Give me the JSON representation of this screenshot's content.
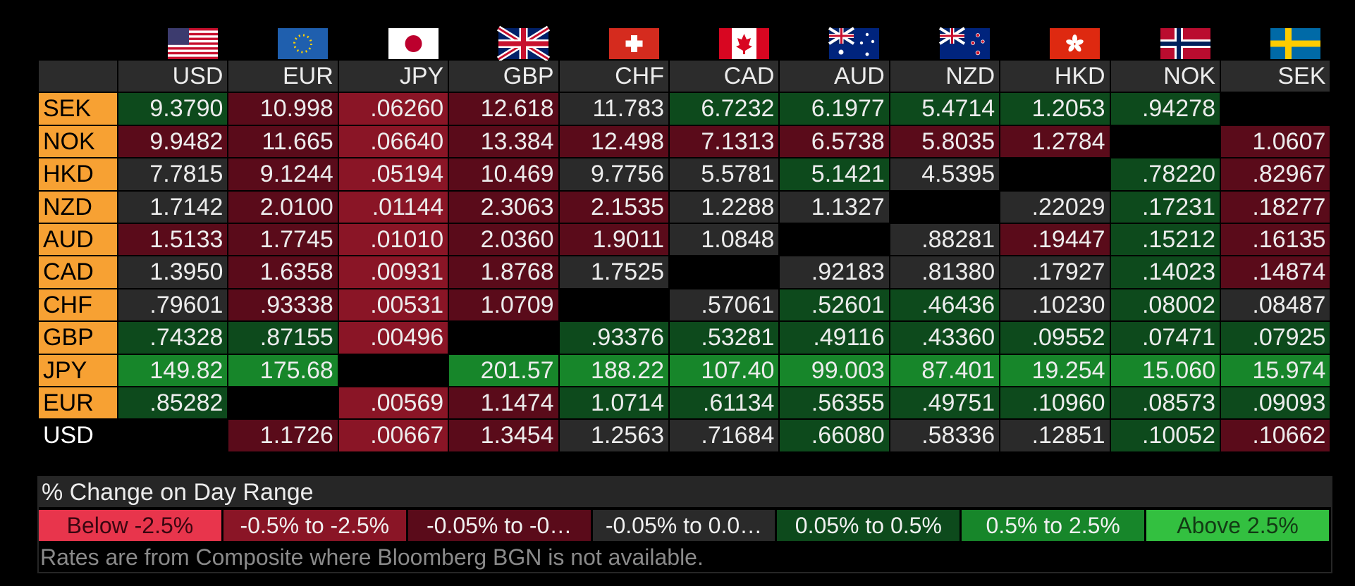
{
  "columns": [
    "USD",
    "EUR",
    "JPY",
    "GBP",
    "CHF",
    "CAD",
    "AUD",
    "NZD",
    "HKD",
    "NOK",
    "SEK"
  ],
  "rows": [
    {
      "label": "SEK",
      "highlight": true,
      "cells": [
        "9.3790",
        "10.998",
        ".06260",
        "12.618",
        "11.783",
        "6.7232",
        "6.1977",
        "5.4714",
        "1.2053",
        ".94278",
        null
      ],
      "levels": [
        4,
        2,
        1,
        2,
        3,
        4,
        4,
        4,
        4,
        4,
        null
      ]
    },
    {
      "label": "NOK",
      "highlight": true,
      "cells": [
        "9.9482",
        "11.665",
        ".06640",
        "13.384",
        "12.498",
        "7.1313",
        "6.5738",
        "5.8035",
        "1.2784",
        null,
        "1.0607"
      ],
      "levels": [
        2,
        2,
        1,
        2,
        2,
        2,
        2,
        2,
        2,
        null,
        2
      ]
    },
    {
      "label": "HKD",
      "highlight": true,
      "cells": [
        "7.7815",
        "9.1244",
        ".05194",
        "10.469",
        "9.7756",
        "5.5781",
        "5.1421",
        "4.5395",
        null,
        ".78220",
        ".82967"
      ],
      "levels": [
        3,
        2,
        1,
        2,
        3,
        3,
        4,
        3,
        null,
        4,
        2
      ]
    },
    {
      "label": "NZD",
      "highlight": true,
      "cells": [
        "1.7142",
        "2.0100",
        ".01144",
        "2.3063",
        "2.1535",
        "1.2288",
        "1.1327",
        null,
        ".22029",
        ".17231",
        ".18277"
      ],
      "levels": [
        3,
        2,
        1,
        2,
        2,
        3,
        3,
        null,
        3,
        4,
        2
      ]
    },
    {
      "label": "AUD",
      "highlight": true,
      "cells": [
        "1.5133",
        "1.7745",
        ".01010",
        "2.0360",
        "1.9011",
        "1.0848",
        null,
        ".88281",
        ".19447",
        ".15212",
        ".16135"
      ],
      "levels": [
        2,
        2,
        1,
        2,
        2,
        3,
        null,
        3,
        2,
        4,
        2
      ]
    },
    {
      "label": "CAD",
      "highlight": true,
      "cells": [
        "1.3950",
        "1.6358",
        ".00931",
        "1.8768",
        "1.7525",
        null,
        ".92183",
        ".81380",
        ".17927",
        ".14023",
        ".14874"
      ],
      "levels": [
        3,
        2,
        1,
        2,
        3,
        null,
        3,
        3,
        3,
        4,
        2
      ]
    },
    {
      "label": "CHF",
      "highlight": true,
      "cells": [
        ".79601",
        ".93338",
        ".00531",
        "1.0709",
        null,
        ".57061",
        ".52601",
        ".46436",
        ".10230",
        ".08002",
        ".08487"
      ],
      "levels": [
        3,
        2,
        1,
        2,
        null,
        3,
        4,
        4,
        3,
        4,
        3
      ]
    },
    {
      "label": "GBP",
      "highlight": true,
      "cells": [
        ".74328",
        ".87155",
        ".00496",
        null,
        ".93376",
        ".53281",
        ".49116",
        ".43360",
        ".09552",
        ".07471",
        ".07925"
      ],
      "levels": [
        4,
        4,
        1,
        null,
        4,
        4,
        4,
        4,
        4,
        4,
        4
      ]
    },
    {
      "label": "JPY",
      "highlight": true,
      "cells": [
        "149.82",
        "175.68",
        null,
        "201.57",
        "188.22",
        "107.40",
        "99.003",
        "87.401",
        "19.254",
        "15.060",
        "15.974"
      ],
      "levels": [
        5,
        5,
        null,
        5,
        5,
        5,
        5,
        5,
        5,
        5,
        5
      ]
    },
    {
      "label": "EUR",
      "highlight": true,
      "cells": [
        ".85282",
        null,
        ".00569",
        "1.1474",
        "1.0714",
        ".61134",
        ".56355",
        ".49751",
        ".10960",
        ".08573",
        ".09093"
      ],
      "levels": [
        4,
        null,
        1,
        2,
        4,
        4,
        4,
        4,
        4,
        4,
        4
      ]
    },
    {
      "label": "USD",
      "highlight": false,
      "cells": [
        null,
        "1.1726",
        ".00667",
        "1.3454",
        "1.2563",
        ".71684",
        ".66080",
        ".58336",
        ".12851",
        ".10052",
        ".10662"
      ],
      "levels": [
        null,
        2,
        1,
        2,
        3,
        3,
        4,
        3,
        3,
        4,
        2
      ]
    }
  ],
  "legend": {
    "title": "% Change on Day Range",
    "items": [
      {
        "label": "Below -2.5%",
        "color": "#e8354c",
        "text_color": "#3a0610"
      },
      {
        "label": "-0.5% to -2.5%",
        "color": "#8a1526",
        "text_color": "#f0f0f0"
      },
      {
        "label": "-0.05% to -0…",
        "color": "#5a0b1a",
        "text_color": "#f0f0f0"
      },
      {
        "label": "-0.05% to 0.0…",
        "color": "#2a2a2a",
        "text_color": "#f0f0f0"
      },
      {
        "label": "0.05% to 0.5%",
        "color": "#0d4a1c",
        "text_color": "#f0f0f0"
      },
      {
        "label": "0.5% to 2.5%",
        "color": "#17862a",
        "text_color": "#f0f0f0"
      },
      {
        "label": "Above 2.5%",
        "color": "#33c040",
        "text_color": "#123a14"
      }
    ]
  },
  "footnote": "Rates are from Composite where Bloomberg BGN is not available."
}
